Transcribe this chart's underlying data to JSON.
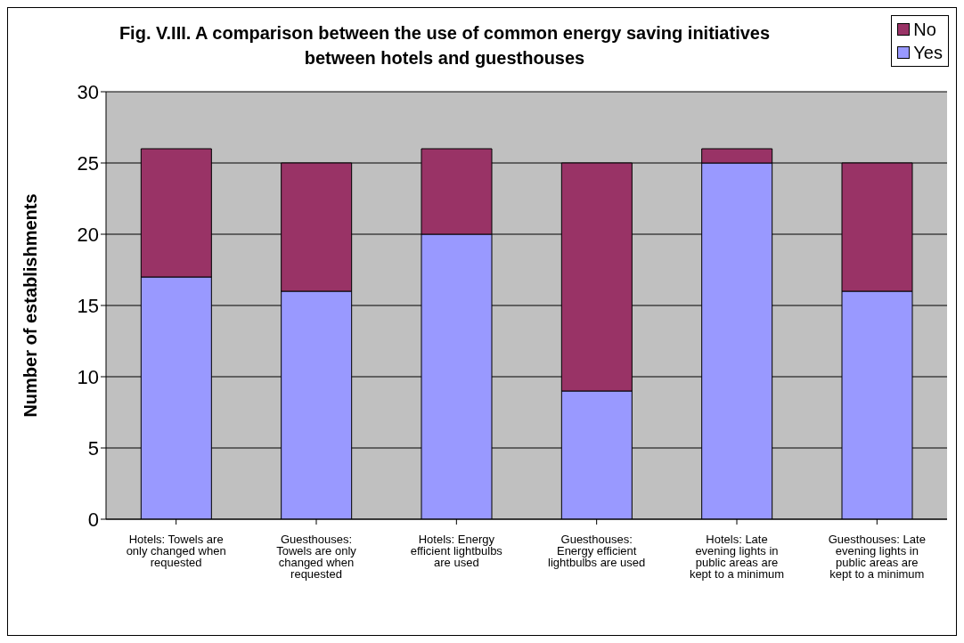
{
  "chart_data": {
    "type": "bar",
    "title": "Fig. V.III.  A comparison between the use of common energy saving initiatives between hotels and guesthouses",
    "ylabel": "Number of establishments",
    "categories": [
      "Hotels: Towels are only changed when requested",
      "Guesthouses: Towels are only changed when requested",
      "Hotels:  Energy efficient lightbulbs are used",
      "Guesthouses: Energy efficient lightbulbs are used",
      "Hotels: Late evening lights in public areas are kept to a minimum",
      "Guesthouses: Late evening lights in public areas are kept to a minimum"
    ],
    "series": [
      {
        "name": "Yes",
        "color": "#9999ff",
        "values": [
          17,
          16,
          20,
          9,
          25,
          16
        ]
      },
      {
        "name": "No",
        "color": "#993366",
        "values": [
          9,
          9,
          6,
          16,
          1,
          9
        ]
      }
    ],
    "stacked": true,
    "ylim": [
      0,
      30
    ],
    "yticks": [
      0,
      5,
      10,
      15,
      20,
      25,
      30
    ],
    "grid": "y",
    "legend": "top right"
  }
}
